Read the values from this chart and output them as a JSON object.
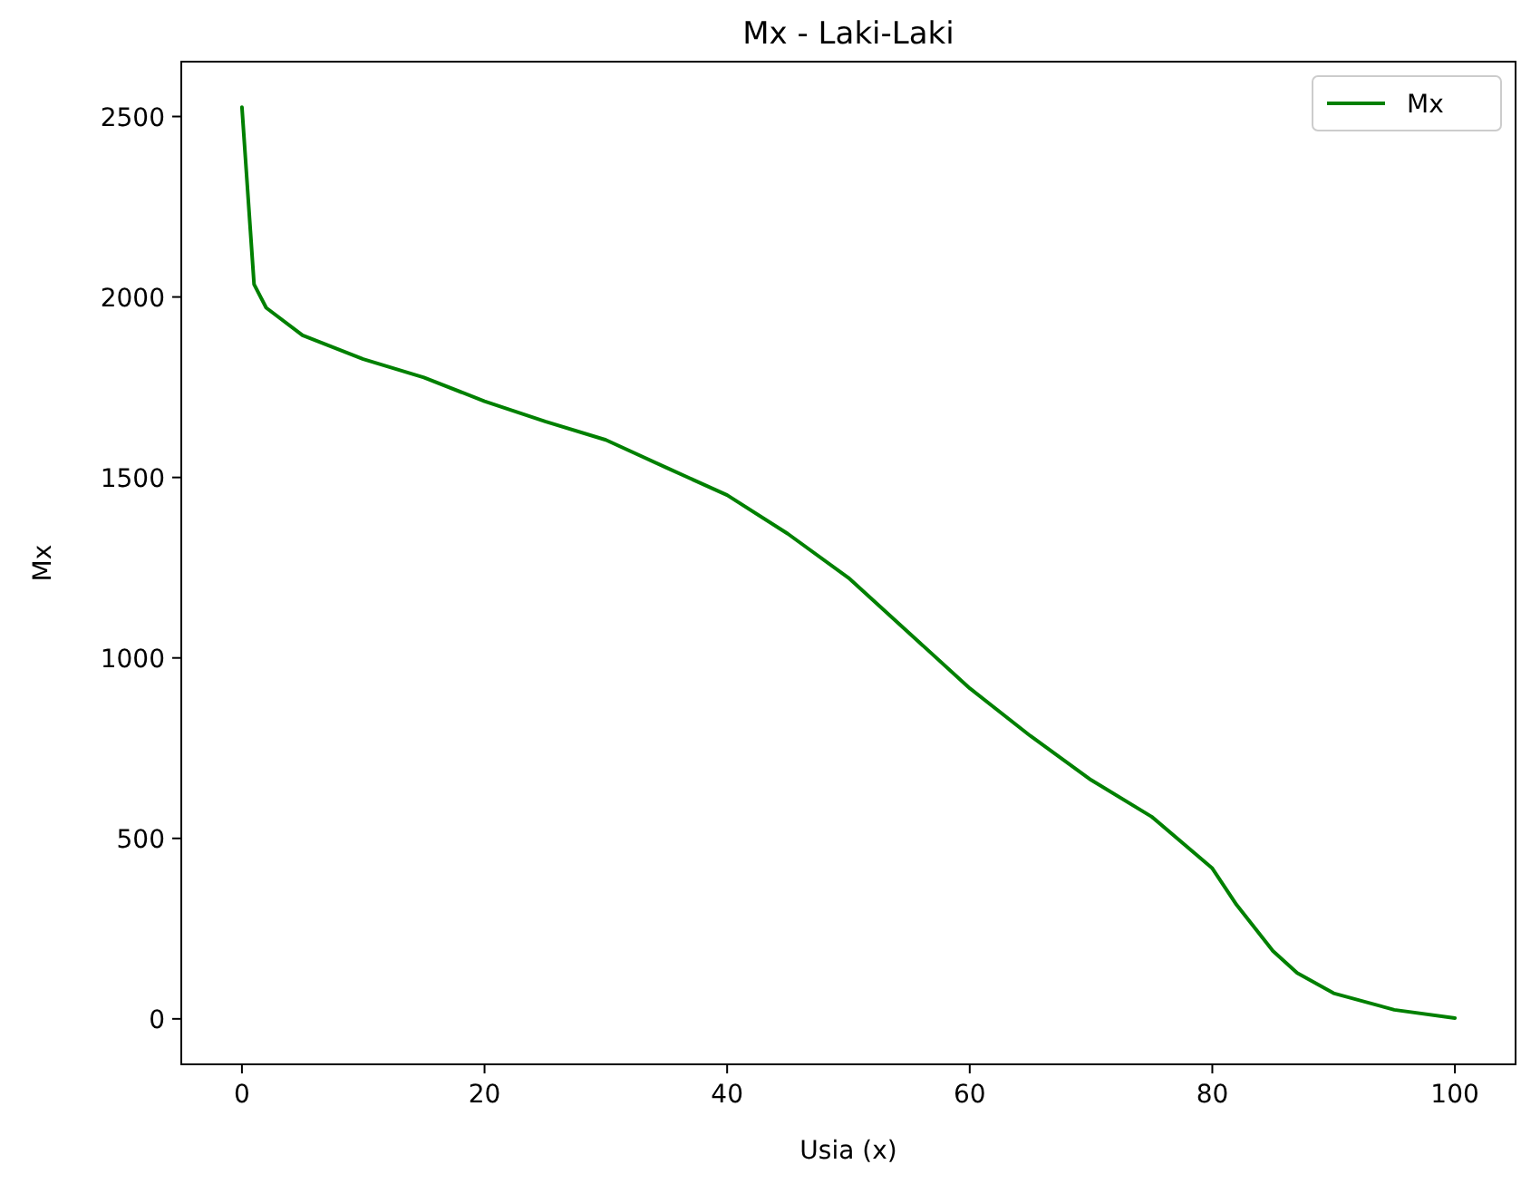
{
  "chart_data": {
    "type": "line",
    "title": "Mx - Laki-Laki",
    "xlabel": "Usia (x)",
    "ylabel": "Mx",
    "x": [
      0,
      1,
      2,
      5,
      10,
      15,
      20,
      25,
      30,
      35,
      40,
      45,
      50,
      55,
      60,
      65,
      70,
      75,
      80,
      82,
      85,
      87,
      90,
      95,
      100
    ],
    "series": [
      {
        "name": "Mx",
        "color": "#008000",
        "values": [
          2526,
          2035,
          1970,
          1894,
          1828,
          1777,
          1711,
          1655,
          1604,
          1527,
          1451,
          1344,
          1222,
          1069,
          916,
          784,
          662,
          560,
          417,
          316,
          188,
          127,
          71,
          25,
          2
        ]
      }
    ],
    "xlim": [
      -5,
      105
    ],
    "xticks": [
      0,
      20,
      40,
      60,
      80,
      100
    ],
    "ylim": [
      -126,
      2652
    ],
    "yticks": [
      0,
      500,
      1000,
      1500,
      2000,
      2500
    ],
    "grid": false,
    "legend": "top right",
    "marker": "none",
    "line_style": "solid"
  }
}
